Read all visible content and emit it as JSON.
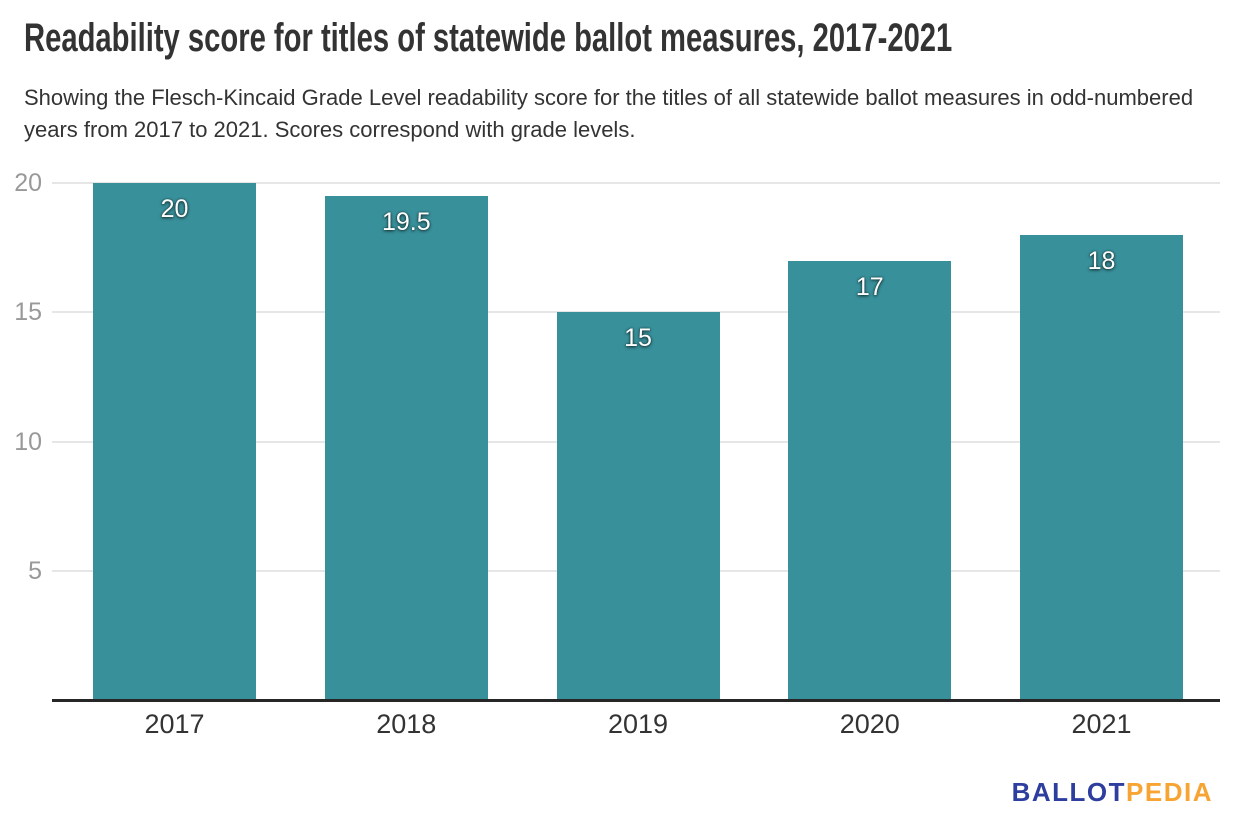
{
  "header": {
    "title": "Readability score for titles of statewide ballot measures, 2017-2021",
    "subtitle": "Showing the Flesch-Kincaid Grade Level readability score for the titles of all statewide ballot measures in odd-numbered years from 2017 to 2021. Scores correspond with grade levels."
  },
  "chart_data": {
    "type": "bar",
    "title": "Readability score for titles of statewide ballot measures, 2017-2021",
    "categories": [
      "2017",
      "2018",
      "2019",
      "2020",
      "2021"
    ],
    "values": [
      20,
      19.5,
      15,
      17,
      18
    ],
    "data_labels": [
      "20",
      "19.5",
      "15",
      "17",
      "18"
    ],
    "xlabel": "",
    "ylabel": "",
    "ylim": [
      0,
      20
    ],
    "yticks": [
      5,
      10,
      15,
      20
    ],
    "grid": "horizontal",
    "legend": "none"
  },
  "colors": {
    "bar": "#38909a",
    "gridline": "#e6e6e6",
    "axis_line": "#262626",
    "y_tick_label": "#999999",
    "x_tick_label": "#333333",
    "title_text": "#333333",
    "subtitle_text": "#333333",
    "data_label_text": "#ffffff",
    "background": "#ffffff"
  },
  "branding": {
    "logo_part1": "BALLOT",
    "logo_part2": "PEDIA",
    "logo_color1": "#2d3e9e",
    "logo_color2": "#f7a433"
  }
}
